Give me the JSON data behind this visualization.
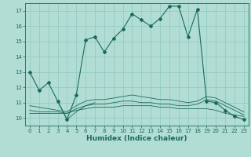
{
  "title": "",
  "xlabel": "Humidex (Indice chaleur)",
  "ylabel": "",
  "background_color": "#b2ddd4",
  "grid_color": "#8ec8bc",
  "line_color": "#1a6b5a",
  "xlim": [
    -0.5,
    23.5
  ],
  "ylim": [
    9.5,
    17.5
  ],
  "yticks": [
    10,
    11,
    12,
    13,
    14,
    15,
    16,
    17
  ],
  "xticks": [
    0,
    1,
    2,
    3,
    4,
    5,
    6,
    7,
    8,
    9,
    10,
    11,
    12,
    13,
    14,
    15,
    16,
    17,
    18,
    19,
    20,
    21,
    22,
    23
  ],
  "line1_x": [
    0,
    1,
    2,
    3,
    4,
    5,
    6,
    7,
    8,
    9,
    10,
    11,
    12,
    13,
    14,
    15,
    16,
    17,
    18,
    19,
    20,
    21,
    22,
    23
  ],
  "line1_y": [
    13,
    11.8,
    12.3,
    11.1,
    9.9,
    11.5,
    15.1,
    15.3,
    14.3,
    15.2,
    15.8,
    16.8,
    16.4,
    16.0,
    16.5,
    17.3,
    17.3,
    15.3,
    17.1,
    11.1,
    11.0,
    10.5,
    10.1,
    9.9
  ],
  "line2_x": [
    0,
    1,
    2,
    3,
    4,
    5,
    6,
    7,
    8,
    9,
    10,
    11,
    12,
    13,
    14,
    15,
    16,
    17,
    18,
    19,
    20,
    21,
    22,
    23
  ],
  "line2_y": [
    10.3,
    10.3,
    10.3,
    10.3,
    10.3,
    10.5,
    10.6,
    10.7,
    10.7,
    10.7,
    10.8,
    10.8,
    10.8,
    10.8,
    10.7,
    10.7,
    10.6,
    10.6,
    10.6,
    10.6,
    10.5,
    10.3,
    10.2,
    10.1
  ],
  "line3_x": [
    0,
    1,
    2,
    3,
    4,
    5,
    6,
    7,
    8,
    9,
    10,
    11,
    12,
    13,
    14,
    15,
    16,
    17,
    18,
    19,
    20,
    21,
    22,
    23
  ],
  "line3_y": [
    10.5,
    10.4,
    10.4,
    10.4,
    10.3,
    10.6,
    10.8,
    10.9,
    10.9,
    11.0,
    11.1,
    11.1,
    11.0,
    11.0,
    10.9,
    10.9,
    10.8,
    10.8,
    10.9,
    11.2,
    11.1,
    10.8,
    10.5,
    10.2
  ],
  "line4_x": [
    0,
    1,
    2,
    3,
    4,
    5,
    6,
    7,
    8,
    9,
    10,
    11,
    12,
    13,
    14,
    15,
    16,
    17,
    18,
    19,
    20,
    21,
    22,
    23
  ],
  "line4_y": [
    10.8,
    10.7,
    10.6,
    10.5,
    10.4,
    10.8,
    11.1,
    11.2,
    11.2,
    11.3,
    11.4,
    11.5,
    11.4,
    11.3,
    11.2,
    11.2,
    11.1,
    11.0,
    11.1,
    11.4,
    11.3,
    11.0,
    10.7,
    10.4
  ],
  "line5_x": [
    3,
    4,
    5,
    6,
    7
  ],
  "line5_y": [
    11.1,
    9.9,
    10.4,
    10.8,
    11.0
  ]
}
